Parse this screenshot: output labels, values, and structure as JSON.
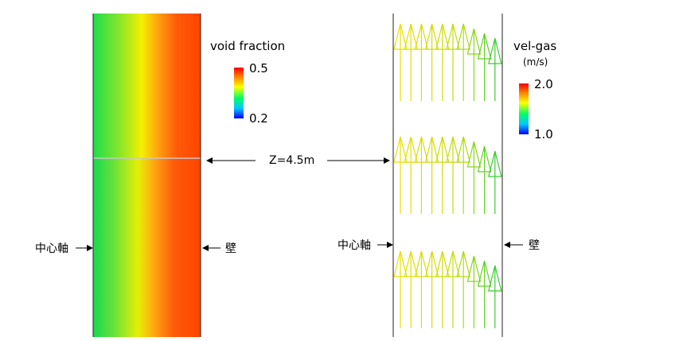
{
  "left_panel": {
    "legend": {
      "title": "void fraction",
      "max_label": "0.5",
      "min_label": "0.2"
    },
    "label_center_axis": "中心軸",
    "label_wall": "壁"
  },
  "right_panel": {
    "legend": {
      "title": "vel-gas",
      "unit": "(m/s)",
      "max_label": "2.0",
      "min_label": "1.0"
    },
    "label_center_axis": "中心軸",
    "label_wall": "壁",
    "vector_rows": 3,
    "vectors_per_row": 10
  },
  "z_label": "Z=4.5m",
  "colors": {
    "colormap": [
      "#0000ff",
      "#00c8ff",
      "#00ff64",
      "#ffff00",
      "#ff8000",
      "#ff0000"
    ],
    "field_center": "#22dd40",
    "field_wall": "#ff4400",
    "vector_yellow": "#e8e000",
    "vector_green": "#33cc33"
  }
}
